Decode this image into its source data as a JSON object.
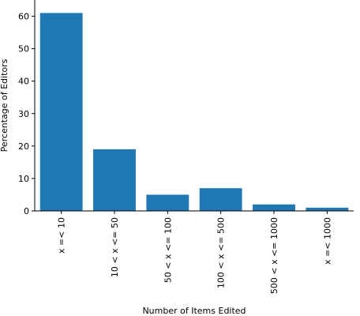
{
  "chart_data": {
    "type": "bar",
    "categories": [
      "x =< 10",
      "10 < x <= 50",
      "50 < x <= 100",
      "100 < x <= 500",
      "500 < x <= 1000",
      "x =< 1000"
    ],
    "values": [
      61,
      19,
      5,
      7,
      2,
      1
    ],
    "xlabel": "Number of Items Edited",
    "ylabel": "Percentage of Editors",
    "ylim": [
      0,
      65
    ],
    "yticks": [
      0,
      10,
      20,
      30,
      40,
      50,
      60
    ],
    "grid": false,
    "bar_color": "#1f77b4"
  }
}
